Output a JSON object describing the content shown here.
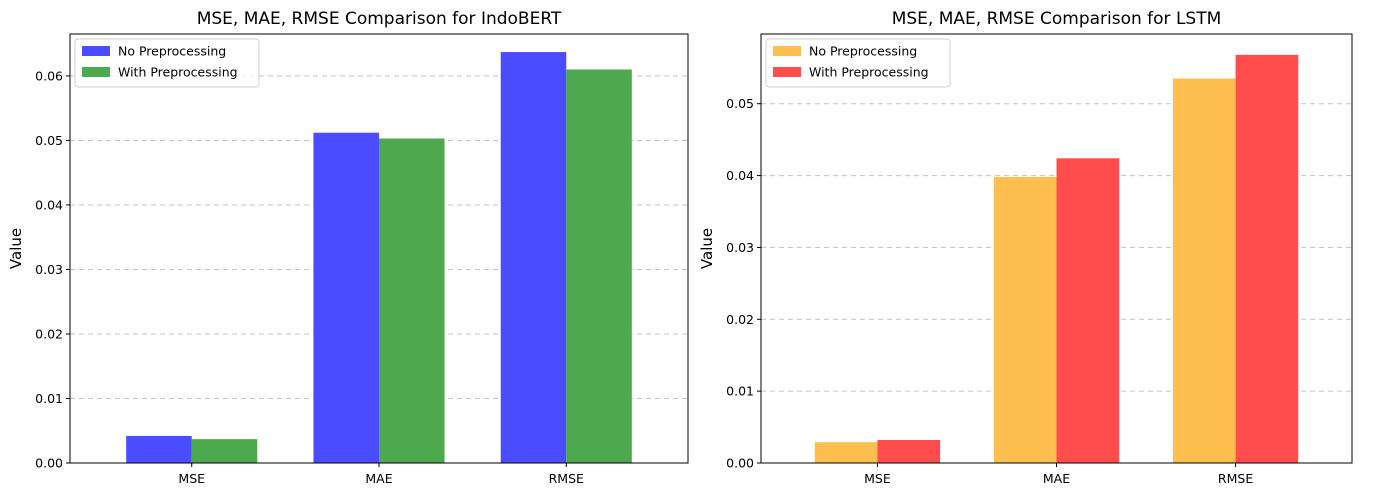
{
  "chart_data": [
    {
      "type": "bar",
      "title": "MSE, MAE, RMSE Comparison for IndoBERT",
      "xlabel": "",
      "ylabel": "Value",
      "categories": [
        "MSE",
        "MAE",
        "RMSE"
      ],
      "ylim": [
        0,
        0.0665
      ],
      "yticks": [
        0.0,
        0.01,
        0.02,
        0.03,
        0.04,
        0.05,
        0.06
      ],
      "ytick_labels": [
        "0.00",
        "0.01",
        "0.02",
        "0.03",
        "0.04",
        "0.05",
        "0.06"
      ],
      "grid": "y-dashed",
      "legend_position": "top-left",
      "series": [
        {
          "name": "No Preprocessing",
          "color": "#4b4bff",
          "values": [
            0.0042,
            0.0512,
            0.0637
          ]
        },
        {
          "name": "With Preprocessing",
          "color": "#4ea84e",
          "values": [
            0.0037,
            0.0503,
            0.061
          ]
        }
      ]
    },
    {
      "type": "bar",
      "title": "MSE, MAE, RMSE Comparison for LSTM",
      "xlabel": "",
      "ylabel": "Value",
      "categories": [
        "MSE",
        "MAE",
        "RMSE"
      ],
      "ylim": [
        0,
        0.0597
      ],
      "yticks": [
        0.0,
        0.01,
        0.02,
        0.03,
        0.04,
        0.05
      ],
      "ytick_labels": [
        "0.00",
        "0.01",
        "0.02",
        "0.03",
        "0.04",
        "0.05"
      ],
      "grid": "y-dashed",
      "legend_position": "top-left",
      "series": [
        {
          "name": "No Preprocessing",
          "color": "#ffbf4f",
          "values": [
            0.0029,
            0.0398,
            0.0535
          ]
        },
        {
          "name": "With Preprocessing",
          "color": "#ff4c4c",
          "values": [
            0.0032,
            0.0424,
            0.0568
          ]
        }
      ]
    }
  ]
}
